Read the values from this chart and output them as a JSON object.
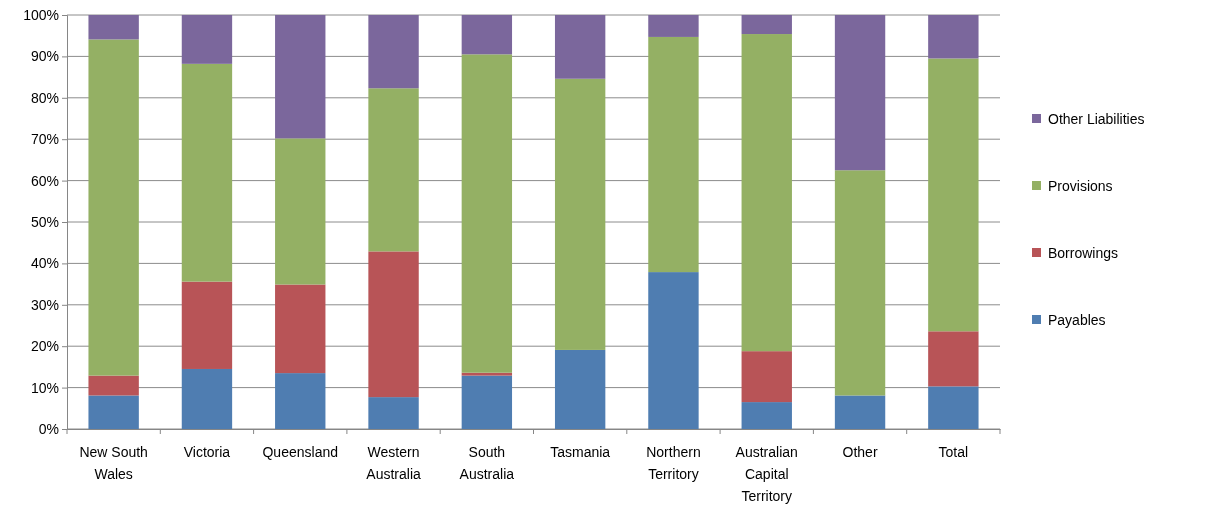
{
  "chart_data": {
    "type": "bar",
    "stacked": true,
    "categories": [
      "New South Wales",
      "Victoria",
      "Queensland",
      "Western Australia",
      "South Australia",
      "Tasmania",
      "Northern Territory",
      "Australian Capital Territory",
      "Other",
      "Total"
    ],
    "series": [
      {
        "name": "Payables",
        "color": "#4f7db1",
        "values": [
          8.1,
          14.5,
          13.5,
          7.7,
          12.9,
          19.1,
          37.9,
          6.5,
          8.1,
          10.3
        ]
      },
      {
        "name": "Borrowings",
        "color": "#b85457",
        "values": [
          4.8,
          21.1,
          21.4,
          35.2,
          0.7,
          0,
          0,
          12.3,
          0,
          13.3
        ]
      },
      {
        "name": "Provisions",
        "color": "#94b064",
        "values": [
          81.2,
          52.6,
          35.3,
          39.4,
          76.9,
          65.5,
          56.8,
          76.6,
          54.4,
          65.9
        ]
      },
      {
        "name": "Other Liabilities",
        "color": "#7b679c",
        "values": [
          5.9,
          11.8,
          29.8,
          17.7,
          9.5,
          15.4,
          5.3,
          4.6,
          37.5,
          10.5
        ]
      }
    ],
    "ylim": [
      0,
      100
    ],
    "yticks": [
      {
        "value": 0,
        "label": "0%"
      },
      {
        "value": 10,
        "label": "10%"
      },
      {
        "value": 20,
        "label": "20%"
      },
      {
        "value": 30,
        "label": "30%"
      },
      {
        "value": 40,
        "label": "40%"
      },
      {
        "value": 50,
        "label": "50%"
      },
      {
        "value": 60,
        "label": "60%"
      },
      {
        "value": 70,
        "label": "70%"
      },
      {
        "value": 80,
        "label": "80%"
      },
      {
        "value": 90,
        "label": "90%"
      },
      {
        "value": 100,
        "label": "100%"
      }
    ],
    "grid": "y",
    "legend": "right"
  }
}
